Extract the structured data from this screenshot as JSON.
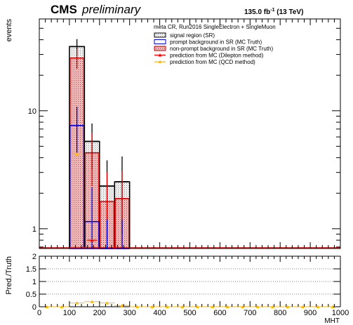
{
  "header": {
    "experiment": "CMS",
    "status": "preliminary",
    "lumi": "135.0 fb",
    "lumi_exp": "-1",
    "energy": " (13 TeV)"
  },
  "chart_data": {
    "type": "bar",
    "legend_title": "meta CR, Run2016 SingleElectron + SingleMuon",
    "legend_position": "top-right",
    "ylabel": "events",
    "xlabel": "MHT",
    "ratio_ylabel": "Pred./Truth",
    "yscale": "log",
    "xlim": [
      0,
      1000
    ],
    "ylim": [
      0.68,
      60
    ],
    "y_ticks": [
      1,
      10
    ],
    "x_ticks": [
      0,
      100,
      200,
      300,
      400,
      500,
      600,
      700,
      800,
      900,
      1000
    ],
    "ratio_ylim": [
      0,
      2
    ],
    "ratio_y_ticks": [
      0,
      0.5,
      1,
      1.5,
      2
    ],
    "bin_edges": [
      100,
      150,
      200,
      250,
      300
    ],
    "colors": {
      "signal": "#000000",
      "signal_fill": "#aaaaaa",
      "prompt": "#0000dd",
      "nonprompt": "#dd0000",
      "nonprompt_fill": "#e8a0a0",
      "dilepton": "#ff0000",
      "qcd": "#ffbb00"
    },
    "series": [
      {
        "name": "signal region (SR)",
        "key": "signal",
        "values": [
          35,
          5.5,
          2.3,
          2.5
        ],
        "errors": [
          5.5,
          2.3,
          1.5,
          1.6
        ]
      },
      {
        "name": "prompt background in SR (MC Truth)",
        "key": "prompt",
        "values": [
          7.5,
          1.15,
          0.6,
          0.6
        ],
        "errors": [
          3.3,
          1.1,
          0.6,
          0.6
        ]
      },
      {
        "name": "non-prompt background in SR (MC Truth)",
        "key": "nonprompt",
        "values": [
          28,
          4.4,
          1.7,
          1.8
        ],
        "errors": [
          5.3,
          2.1,
          1.3,
          1.3
        ]
      },
      {
        "name": "prediction from MC (Dilepton method)",
        "key": "dilepton",
        "values": [
          null,
          0.8,
          null,
          null
        ]
      },
      {
        "name": "prediction from MC (QCD method)",
        "key": "qcd",
        "values": [
          4.3,
          0.8,
          null,
          null
        ]
      }
    ],
    "ratio": {
      "x": [
        25,
        75,
        125,
        175,
        225,
        275,
        325,
        375,
        425,
        475,
        525,
        575,
        625,
        675,
        725,
        775,
        825,
        875,
        925,
        975
      ],
      "qcd": [
        0,
        0,
        0.15,
        0.2,
        0.15,
        0.05,
        0,
        0,
        0,
        0,
        0,
        0,
        0,
        0,
        0,
        0,
        0,
        0,
        0,
        0
      ],
      "dilepton": [
        0,
        0,
        0,
        0.18,
        0,
        0,
        0,
        0,
        0,
        0,
        0,
        0,
        0,
        0,
        0,
        0,
        0,
        0,
        0,
        0
      ]
    }
  }
}
